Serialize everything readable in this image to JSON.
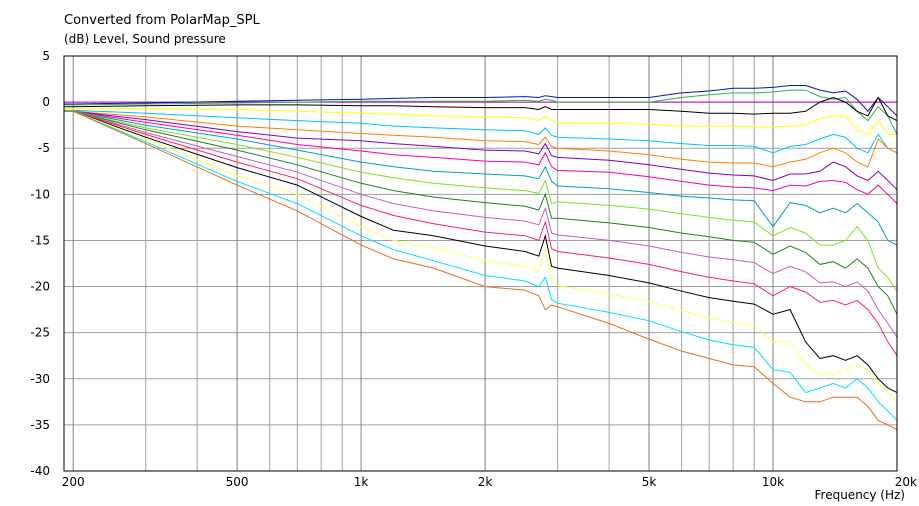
{
  "chart_data": {
    "type": "line",
    "title": "Converted from PolarMap_SPL",
    "ylabel": "(dB)  Level, Sound pressure",
    "xlabel": "Frequency  (Hz)",
    "x_scale": "log",
    "xlim": [
      190,
      20000
    ],
    "ylim": [
      -40,
      5
    ],
    "grid": true,
    "x_major_ticks": [
      {
        "value": 200,
        "label": "200"
      },
      {
        "value": 500,
        "label": "500"
      },
      {
        "value": 1000,
        "label": "1k"
      },
      {
        "value": 2000,
        "label": "2k"
      },
      {
        "value": 5000,
        "label": "5k"
      },
      {
        "value": 10000,
        "label": "10k"
      },
      {
        "value": 20000,
        "label": "20k"
      }
    ],
    "x_minor_ticks": [
      300,
      400,
      600,
      700,
      800,
      900,
      3000,
      4000,
      6000,
      7000,
      8000,
      9000
    ],
    "y_ticks": [
      {
        "value": 5,
        "label": "5"
      },
      {
        "value": 0,
        "label": "0"
      },
      {
        "value": -5,
        "label": "-5"
      },
      {
        "value": -10,
        "label": "-10"
      },
      {
        "value": -15,
        "label": "-15"
      },
      {
        "value": -20,
        "label": "-20"
      },
      {
        "value": -25,
        "label": "-25"
      },
      {
        "value": -30,
        "label": "-30"
      },
      {
        "value": -35,
        "label": "-35"
      },
      {
        "value": -40,
        "label": "-40"
      }
    ],
    "x": [
      190,
      200,
      300,
      500,
      700,
      1000,
      1200,
      1500,
      2000,
      2500,
      2700,
      2800,
      2900,
      3000,
      4000,
      5000,
      6000,
      7000,
      8000,
      9000,
      10000,
      11000,
      12000,
      13000,
      14000,
      15000,
      16000,
      17000,
      18000,
      19000,
      20000
    ],
    "series": [
      {
        "color": "#c000c0",
        "values": [
          0.0,
          0.0,
          0.0,
          0.0,
          0.0,
          0.0,
          0.0,
          0.0,
          0.0,
          0.0,
          0.0,
          0.0,
          0.0,
          0.0,
          0.0,
          0.0,
          0.0,
          0.0,
          0.0,
          0.0,
          0.0,
          0.0,
          0.0,
          0.0,
          0.0,
          0.0,
          0.0,
          0.0,
          0.0,
          0.0,
          0.0
        ]
      },
      {
        "color": "#1010b0",
        "values": [
          -0.2,
          -0.2,
          -0.1,
          0.1,
          0.2,
          0.3,
          0.4,
          0.5,
          0.5,
          0.6,
          0.5,
          0.7,
          0.6,
          0.5,
          0.5,
          0.5,
          1.0,
          1.2,
          1.5,
          1.5,
          1.6,
          1.8,
          1.8,
          1.3,
          1.0,
          1.2,
          0.3,
          -1.0,
          0.5,
          -0.5,
          -1.5
        ]
      },
      {
        "color": "#30b050",
        "values": [
          -0.3,
          -0.3,
          -0.2,
          -0.1,
          0.0,
          0.1,
          0.1,
          0.1,
          0.1,
          0.2,
          0.1,
          0.3,
          0.2,
          0.0,
          0.0,
          0.0,
          0.5,
          0.8,
          1.0,
          1.0,
          1.1,
          1.3,
          1.3,
          0.6,
          0.3,
          0.5,
          -1.0,
          -2.0,
          -0.5,
          -1.5,
          -3.5
        ]
      },
      {
        "color": "#000000",
        "values": [
          -0.5,
          -0.5,
          -0.4,
          -0.3,
          -0.3,
          -0.4,
          -0.4,
          -0.5,
          -0.6,
          -0.6,
          -0.8,
          -0.5,
          -0.8,
          -0.8,
          -0.8,
          -0.8,
          -1.0,
          -1.2,
          -1.2,
          -1.3,
          -1.2,
          -1.2,
          -1.0,
          0.0,
          0.5,
          0.0,
          -1.0,
          -1.5,
          0.5,
          -1.5,
          -2.0
        ]
      },
      {
        "color": "#ffff00",
        "values": [
          -0.7,
          -0.7,
          -0.7,
          -0.8,
          -1.0,
          -1.2,
          -1.3,
          -1.5,
          -1.6,
          -1.7,
          -2.0,
          -1.5,
          -2.0,
          -2.2,
          -2.3,
          -2.4,
          -2.6,
          -2.6,
          -2.6,
          -2.7,
          -2.7,
          -2.6,
          -2.4,
          -1.8,
          -1.5,
          -1.5,
          -3.0,
          -3.5,
          -2.0,
          -3.5,
          -3.5
        ]
      },
      {
        "color": "#00c0ff",
        "values": [
          -0.9,
          -0.9,
          -1.2,
          -1.7,
          -2.0,
          -2.3,
          -2.6,
          -2.8,
          -3.0,
          -3.1,
          -3.5,
          -2.8,
          -3.6,
          -3.8,
          -4.0,
          -4.2,
          -4.5,
          -4.7,
          -4.7,
          -4.8,
          -5.5,
          -4.8,
          -4.6,
          -4.0,
          -3.5,
          -3.8,
          -5.0,
          -5.5,
          -3.5,
          -5.0,
          -5.5
        ]
      },
      {
        "color": "#ff8000",
        "values": [
          -1.0,
          -1.0,
          -1.6,
          -2.6,
          -3.0,
          -3.4,
          -3.6,
          -3.8,
          -4.2,
          -4.3,
          -4.6,
          -3.8,
          -4.8,
          -5.0,
          -5.3,
          -5.7,
          -6.2,
          -6.5,
          -6.6,
          -6.6,
          -7.0,
          -6.5,
          -6.2,
          -5.5,
          -5.0,
          -5.5,
          -6.5,
          -7.0,
          -4.0,
          -5.0,
          -5.5
        ]
      },
      {
        "color": "#8000c0",
        "values": [
          -1.0,
          -1.0,
          -1.9,
          -3.2,
          -3.9,
          -4.2,
          -4.5,
          -4.8,
          -5.2,
          -5.3,
          -5.6,
          -4.5,
          -5.8,
          -6.0,
          -6.3,
          -6.8,
          -7.3,
          -7.7,
          -7.9,
          -8.0,
          -8.5,
          -7.8,
          -7.8,
          -7.5,
          -6.5,
          -7.0,
          -8.0,
          -8.5,
          -7.5,
          -8.5,
          -9.5
        ]
      },
      {
        "color": "#ff00a0",
        "values": [
          -1.0,
          -1.0,
          -2.2,
          -3.6,
          -4.6,
          -5.3,
          -5.7,
          -6.0,
          -6.4,
          -6.5,
          -6.8,
          -5.5,
          -7.0,
          -7.4,
          -7.6,
          -8.1,
          -8.6,
          -9.0,
          -9.2,
          -9.3,
          -9.6,
          -9.0,
          -9.1,
          -8.6,
          -8.5,
          -8.7,
          -9.5,
          -10.0,
          -9.0,
          -10.0,
          -11.0
        ]
      },
      {
        "color": "#00a0c0",
        "values": [
          -1.0,
          -1.0,
          -2.5,
          -4.0,
          -5.2,
          -6.5,
          -7.0,
          -7.5,
          -7.8,
          -8.0,
          -8.3,
          -7.0,
          -8.6,
          -9.1,
          -9.4,
          -9.8,
          -10.2,
          -10.4,
          -10.6,
          -10.7,
          -13.5,
          -10.9,
          -11.2,
          -12.0,
          -11.5,
          -12.0,
          -11.0,
          -12.0,
          -13.0,
          -15.0,
          -15.5
        ]
      },
      {
        "color": "#80e020",
        "values": [
          -1.0,
          -1.0,
          -2.8,
          -4.6,
          -6.0,
          -7.6,
          -8.2,
          -8.8,
          -9.3,
          -9.6,
          -9.9,
          -8.5,
          -11.0,
          -10.8,
          -11.2,
          -11.6,
          -12.1,
          -12.5,
          -12.8,
          -13.0,
          -14.5,
          -13.6,
          -14.2,
          -15.5,
          -15.5,
          -15.0,
          -13.5,
          -15.0,
          -18.0,
          -19.0,
          -20.5
        ]
      },
      {
        "color": "#208020",
        "values": [
          -1.0,
          -1.0,
          -3.0,
          -5.2,
          -6.8,
          -8.8,
          -9.6,
          -10.3,
          -10.9,
          -11.3,
          -11.7,
          -10.0,
          -12.6,
          -12.6,
          -13.1,
          -13.6,
          -14.2,
          -14.6,
          -15.0,
          -15.2,
          -16.5,
          -15.6,
          -16.3,
          -17.6,
          -17.3,
          -18.0,
          -17.0,
          -18.0,
          -20.0,
          -21.0,
          -23.0
        ]
      },
      {
        "color": "#c060c0",
        "values": [
          -1.0,
          -1.0,
          -3.3,
          -5.9,
          -7.6,
          -10.0,
          -11.0,
          -11.8,
          -12.5,
          -12.9,
          -13.3,
          -11.5,
          -14.2,
          -14.4,
          -15.0,
          -15.6,
          -16.3,
          -16.8,
          -17.1,
          -17.4,
          -18.6,
          -17.8,
          -18.4,
          -19.6,
          -19.5,
          -20.0,
          -19.5,
          -20.5,
          -22.5,
          -24.0,
          -25.5
        ]
      },
      {
        "color": "#ff2060",
        "values": [
          -1.0,
          -1.0,
          -3.5,
          -6.5,
          -8.3,
          -11.2,
          -12.3,
          -13.2,
          -14.1,
          -14.5,
          -15.0,
          -13.0,
          -15.9,
          -16.2,
          -16.9,
          -17.6,
          -18.4,
          -19.0,
          -19.4,
          -19.7,
          -21.0,
          -20.0,
          -20.6,
          -21.7,
          -21.5,
          -22.0,
          -21.5,
          -22.5,
          -24.0,
          -26.0,
          -27.5
        ]
      },
      {
        "color": "#000000",
        "values": [
          -1.0,
          -1.0,
          -3.8,
          -7.1,
          -9.0,
          -12.4,
          -13.9,
          -14.5,
          -15.6,
          -16.2,
          -16.7,
          -14.5,
          -17.8,
          -18.0,
          -18.8,
          -19.6,
          -20.5,
          -21.2,
          -21.6,
          -21.9,
          -23.0,
          -22.5,
          -26.0,
          -27.8,
          -27.5,
          -28.0,
          -27.5,
          -28.5,
          -30.0,
          -31.0,
          -31.5
        ]
      },
      {
        "color": "#ffff60",
        "values": [
          -1.0,
          -1.0,
          -4.0,
          -8.0,
          -10.0,
          -13.5,
          -15.0,
          -15.8,
          -17.2,
          -17.8,
          -18.3,
          -16.0,
          -19.6,
          -19.9,
          -20.8,
          -21.6,
          -22.6,
          -23.4,
          -23.9,
          -24.2,
          -26.0,
          -26.0,
          -28.5,
          -29.5,
          -29.5,
          -29.0,
          -28.5,
          -29.0,
          -30.5,
          -31.5,
          -32.5
        ]
      },
      {
        "color": "#00e0ff",
        "values": [
          -1.0,
          -1.0,
          -4.3,
          -8.6,
          -11.0,
          -14.5,
          -16.0,
          -17.2,
          -18.8,
          -19.4,
          -20.0,
          -19.0,
          -21.4,
          -21.8,
          -22.8,
          -23.7,
          -24.9,
          -25.8,
          -26.3,
          -26.6,
          -29.0,
          -29.3,
          -31.5,
          -31.0,
          -30.5,
          -31.0,
          -30.0,
          -31.0,
          -32.5,
          -33.5,
          -34.5
        ]
      },
      {
        "color": "#e07020",
        "values": [
          -1.0,
          -1.0,
          -4.5,
          -9.0,
          -11.8,
          -15.5,
          -17.0,
          -18.0,
          -20.0,
          -20.4,
          -21.0,
          -22.5,
          -22.0,
          -22.2,
          -24.0,
          -25.7,
          -27.0,
          -27.8,
          -28.5,
          -28.7,
          -30.5,
          -32.0,
          -32.5,
          -32.5,
          -32.0,
          -32.0,
          -32.0,
          -33.0,
          -34.5,
          -35.0,
          -35.5
        ]
      }
    ]
  }
}
